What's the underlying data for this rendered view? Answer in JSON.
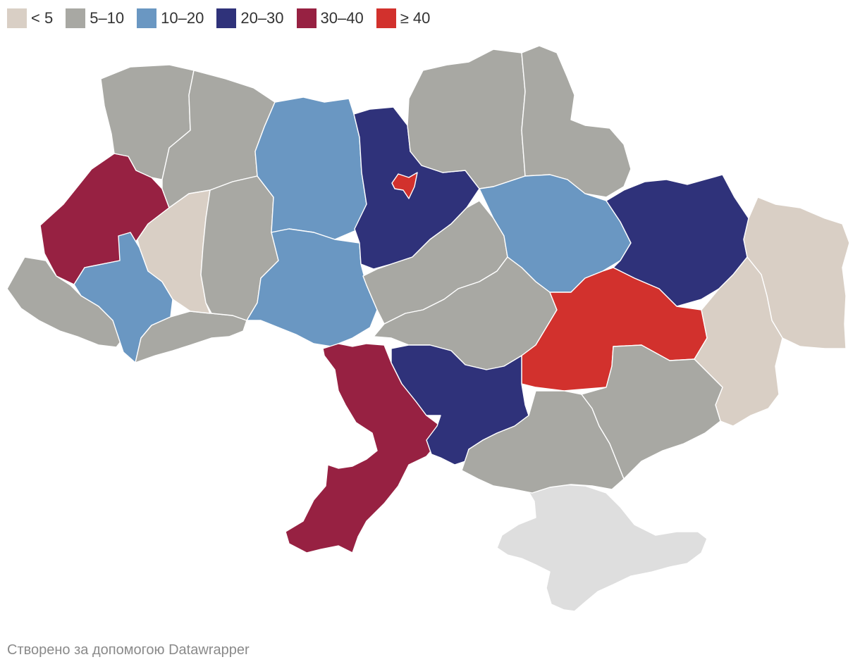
{
  "legend": [
    {
      "label": "< 5",
      "color": "#d9cfc5"
    },
    {
      "label": "5–10",
      "color": "#a8a8a3"
    },
    {
      "label": "10–20",
      "color": "#6a97c2"
    },
    {
      "label": "20–30",
      "color": "#2f327a"
    },
    {
      "label": "30–40",
      "color": "#972142"
    },
    {
      "label": "≥ 40",
      "color": "#d2312d"
    }
  ],
  "colors": {
    "lt5": "#d9cfc5",
    "c5_10": "#a8a8a3",
    "c10_20": "#6a97c2",
    "c20_30": "#2f327a",
    "c30_40": "#972142",
    "gte40": "#d2312d",
    "no_data": "#dedede"
  },
  "credit": "Створено за допомогою Datawrapper"
}
